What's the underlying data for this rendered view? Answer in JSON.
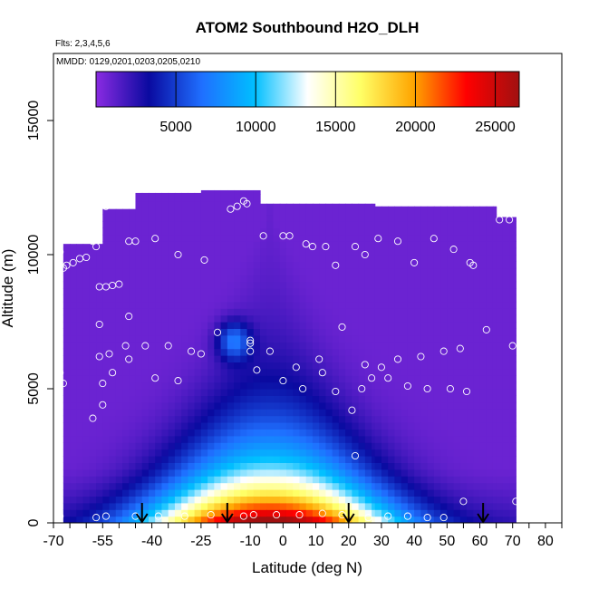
{
  "chart_data": {
    "type": "heatmap",
    "title": "ATOM2 Southbound H2O_DLH",
    "annotations": [
      "Flts: 2,3,4,5,6",
      "MMDD: 0129,0201,0203,0205,0210"
    ],
    "xlabel": "Latitude (deg N)",
    "ylabel": "Altitude (m)",
    "xlim": [
      -70,
      85
    ],
    "ylim": [
      0,
      17500
    ],
    "x_ticks": [
      -70,
      -55,
      -40,
      -25,
      -10,
      0,
      10,
      20,
      30,
      40,
      50,
      60,
      70,
      80
    ],
    "x_minor_step": 5,
    "y_ticks": [
      0,
      5000,
      10000,
      15000
    ],
    "colorbar": {
      "range": [
        0,
        26500
      ],
      "ticks": [
        5000,
        10000,
        15000,
        20000,
        25000
      ],
      "colors": [
        "#8a2be2",
        "#0a0aa0",
        "#1f6fff",
        "#00bfff",
        "#ffffff",
        "#ffff66",
        "#ffa500",
        "#ff0000",
        "#a01010"
      ],
      "placement": "top"
    },
    "grid": false,
    "arrows_lat": [
      -43,
      -17,
      20,
      61
    ],
    "field_model": {
      "background_value": 800,
      "boundary_layer": {
        "center_lat": -4,
        "half_width_deg": 37,
        "peak_value": 26000,
        "scale_height_m": 2300,
        "shrink_per_km": 3.2
      },
      "upper_moist_patch": {
        "lat": -15,
        "alt": 6800,
        "value": 5500
      }
    },
    "coverage": [
      {
        "lat": [
          -67,
          -55
        ],
        "alt": [
          0,
          10400
        ]
      },
      {
        "lat": [
          -55,
          -45
        ],
        "alt": [
          0,
          11700
        ]
      },
      {
        "lat": [
          -45,
          -25
        ],
        "alt": [
          0,
          12300
        ]
      },
      {
        "lat": [
          -25,
          -7
        ],
        "alt": [
          0,
          12400
        ]
      },
      {
        "lat": [
          -7,
          28
        ],
        "alt": [
          0,
          11900
        ]
      },
      {
        "lat": [
          28,
          65
        ],
        "alt": [
          0,
          11800
        ]
      },
      {
        "lat": [
          65,
          71
        ],
        "alt": [
          0,
          11400
        ]
      }
    ],
    "sample_points": [
      {
        "x": -68,
        "y": 10100
      },
      {
        "x": -67,
        "y": 9500
      },
      {
        "x": -66,
        "y": 9600
      },
      {
        "x": -64,
        "y": 9700
      },
      {
        "x": -62,
        "y": 9850
      },
      {
        "x": -60,
        "y": 9900
      },
      {
        "x": -58,
        "y": 10500
      },
      {
        "x": -57,
        "y": 10300
      },
      {
        "x": -56,
        "y": 8800
      },
      {
        "x": -54,
        "y": 8800
      },
      {
        "x": -52,
        "y": 8850
      },
      {
        "x": -50,
        "y": 8900
      },
      {
        "x": -54,
        "y": 11800
      },
      {
        "x": -52,
        "y": 12000
      },
      {
        "x": -50,
        "y": 12200
      },
      {
        "x": -47,
        "y": 10500
      },
      {
        "x": -45,
        "y": 10500
      },
      {
        "x": -39,
        "y": 10600
      },
      {
        "x": -32,
        "y": 10000
      },
      {
        "x": -24,
        "y": 9800
      },
      {
        "x": -16,
        "y": 11700
      },
      {
        "x": -14,
        "y": 11800
      },
      {
        "x": -12,
        "y": 12000
      },
      {
        "x": -11,
        "y": 11900
      },
      {
        "x": -6,
        "y": 10700
      },
      {
        "x": 0,
        "y": 10700
      },
      {
        "x": 2,
        "y": 10700
      },
      {
        "x": 7,
        "y": 10400
      },
      {
        "x": 9,
        "y": 10300
      },
      {
        "x": 13,
        "y": 10300
      },
      {
        "x": 16,
        "y": 9600
      },
      {
        "x": 22,
        "y": 10300
      },
      {
        "x": 25,
        "y": 10000
      },
      {
        "x": 29,
        "y": 10600
      },
      {
        "x": 35,
        "y": 10500
      },
      {
        "x": 40,
        "y": 9700
      },
      {
        "x": 46,
        "y": 10600
      },
      {
        "x": 52,
        "y": 10200
      },
      {
        "x": 57,
        "y": 9700
      },
      {
        "x": 58,
        "y": 9600
      },
      {
        "x": 66,
        "y": 11300
      },
      {
        "x": 69,
        "y": 11300
      },
      {
        "x": -68,
        "y": 5600
      },
      {
        "x": -67,
        "y": 5200
      },
      {
        "x": -56,
        "y": 7400
      },
      {
        "x": -56,
        "y": 6200
      },
      {
        "x": -55,
        "y": 5200
      },
      {
        "x": -53,
        "y": 6300
      },
      {
        "x": -52,
        "y": 5600
      },
      {
        "x": -48,
        "y": 6600
      },
      {
        "x": -47,
        "y": 6100
      },
      {
        "x": -47,
        "y": 7700
      },
      {
        "x": -42,
        "y": 6600
      },
      {
        "x": -39,
        "y": 5400
      },
      {
        "x": -35,
        "y": 6600
      },
      {
        "x": -32,
        "y": 5300
      },
      {
        "x": -28,
        "y": 6400
      },
      {
        "x": -25,
        "y": 6300
      },
      {
        "x": -20,
        "y": 7100
      },
      {
        "x": -10,
        "y": 6800
      },
      {
        "x": -10,
        "y": 6700
      },
      {
        "x": -10,
        "y": 6400
      },
      {
        "x": -8,
        "y": 5700
      },
      {
        "x": -4,
        "y": 6400
      },
      {
        "x": 0,
        "y": 5300
      },
      {
        "x": 4,
        "y": 5800
      },
      {
        "x": 6,
        "y": 5000
      },
      {
        "x": 11,
        "y": 6100
      },
      {
        "x": 12,
        "y": 5600
      },
      {
        "x": 16,
        "y": 4900
      },
      {
        "x": 18,
        "y": 7300
      },
      {
        "x": 21,
        "y": 4200
      },
      {
        "x": 24,
        "y": 5000
      },
      {
        "x": 25,
        "y": 5900
      },
      {
        "x": 27,
        "y": 5400
      },
      {
        "x": 30,
        "y": 5800
      },
      {
        "x": 32,
        "y": 5400
      },
      {
        "x": 35,
        "y": 6100
      },
      {
        "x": 38,
        "y": 5100
      },
      {
        "x": 42,
        "y": 6200
      },
      {
        "x": 44,
        "y": 5000
      },
      {
        "x": 49,
        "y": 6400
      },
      {
        "x": 51,
        "y": 5000
      },
      {
        "x": 54,
        "y": 6500
      },
      {
        "x": 56,
        "y": 4900
      },
      {
        "x": 62,
        "y": 7200
      },
      {
        "x": 70,
        "y": 6600
      },
      {
        "x": -58,
        "y": 3900
      },
      {
        "x": -55,
        "y": 4400
      },
      {
        "x": 22,
        "y": 2500
      },
      {
        "x": -68,
        "y": 250
      },
      {
        "x": -57,
        "y": 200
      },
      {
        "x": -54,
        "y": 250
      },
      {
        "x": -45,
        "y": 250
      },
      {
        "x": -38,
        "y": 250
      },
      {
        "x": -30,
        "y": 250
      },
      {
        "x": -22,
        "y": 300
      },
      {
        "x": -12,
        "y": 250
      },
      {
        "x": -9,
        "y": 300
      },
      {
        "x": -2,
        "y": 300
      },
      {
        "x": 5,
        "y": 300
      },
      {
        "x": 12,
        "y": 350
      },
      {
        "x": 18,
        "y": 300
      },
      {
        "x": 26,
        "y": 200
      },
      {
        "x": 32,
        "y": 250
      },
      {
        "x": 38,
        "y": 250
      },
      {
        "x": 44,
        "y": 200
      },
      {
        "x": 49,
        "y": 200
      },
      {
        "x": 55,
        "y": 800
      },
      {
        "x": 71,
        "y": 800
      }
    ]
  }
}
